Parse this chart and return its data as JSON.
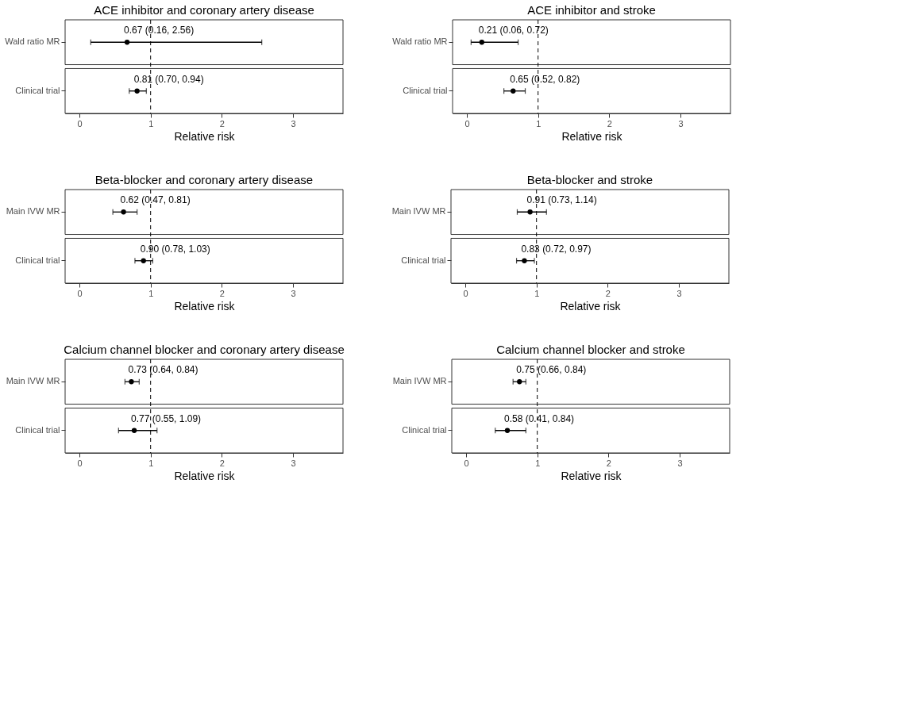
{
  "chart_data": [
    {
      "type": "scatter",
      "title": "ACE inhibitor and coronary artery disease",
      "orientation": "horizontal",
      "categories": [
        "Wald ratio MR",
        "Clinical trial"
      ],
      "values": [
        0.67,
        0.81
      ],
      "errors": [
        [
          0.16,
          2.56
        ],
        [
          0.7,
          0.94
        ]
      ],
      "value_labels": [
        "0.67 (0.16, 2.56)",
        "0.81 (0.70, 0.94)"
      ],
      "color": "#000000",
      "marker": "circle",
      "xlabel": "Relative risk",
      "xlim": [
        -0.2,
        3.7
      ],
      "xticks": [
        0,
        1,
        2,
        3
      ],
      "ref_lines": [
        {
          "axis": "x",
          "value": 1,
          "line_style": "dashed"
        }
      ],
      "grid": false
    },
    {
      "type": "scatter",
      "title": "ACE inhibitor and stroke",
      "orientation": "horizontal",
      "categories": [
        "Wald ratio MR",
        "Clinical trial"
      ],
      "values": [
        0.21,
        0.65
      ],
      "errors": [
        [
          0.06,
          0.72
        ],
        [
          0.52,
          0.82
        ]
      ],
      "value_labels": [
        "0.21 (0.06, 0.72)",
        "0.65 (0.52, 0.82)"
      ],
      "color": "#000000",
      "marker": "circle",
      "xlabel": "Relative risk",
      "xlim": [
        -0.2,
        3.7
      ],
      "xticks": [
        0,
        1,
        2,
        3
      ],
      "ref_lines": [
        {
          "axis": "x",
          "value": 1,
          "line_style": "dashed"
        }
      ],
      "grid": false
    },
    {
      "type": "scatter",
      "title": "Beta-blocker and coronary artery disease",
      "orientation": "horizontal",
      "categories": [
        "Main IVW MR",
        "Clinical trial"
      ],
      "values": [
        0.62,
        0.9
      ],
      "errors": [
        [
          0.47,
          0.81
        ],
        [
          0.78,
          1.03
        ]
      ],
      "value_labels": [
        "0.62 (0.47, 0.81)",
        "0.90 (0.78, 1.03)"
      ],
      "color": "#000000",
      "marker": "circle",
      "xlabel": "Relative risk",
      "xlim": [
        -0.2,
        3.7
      ],
      "xticks": [
        0,
        1,
        2,
        3
      ],
      "ref_lines": [
        {
          "axis": "x",
          "value": 1,
          "line_style": "dashed"
        }
      ],
      "grid": false
    },
    {
      "type": "scatter",
      "title": "Beta-blocker and stroke",
      "orientation": "horizontal",
      "categories": [
        "Main IVW MR",
        "Clinical trial"
      ],
      "values": [
        0.91,
        0.83
      ],
      "errors": [
        [
          0.73,
          1.14
        ],
        [
          0.72,
          0.97
        ]
      ],
      "value_labels": [
        "0.91 (0.73, 1.14)",
        "0.83 (0.72, 0.97)"
      ],
      "color": "#000000",
      "marker": "circle",
      "xlabel": "Relative risk",
      "xlim": [
        -0.2,
        3.7
      ],
      "xticks": [
        0,
        1,
        2,
        3
      ],
      "ref_lines": [
        {
          "axis": "x",
          "value": 1,
          "line_style": "dashed"
        }
      ],
      "grid": false
    },
    {
      "type": "scatter",
      "title": "Calcium channel blocker and coronary artery disease",
      "orientation": "horizontal",
      "categories": [
        "Main IVW MR",
        "Clinical trial"
      ],
      "values": [
        0.73,
        0.77
      ],
      "errors": [
        [
          0.64,
          0.84
        ],
        [
          0.55,
          1.09
        ]
      ],
      "value_labels": [
        "0.73 (0.64, 0.84)",
        "0.77 (0.55, 1.09)"
      ],
      "color": "#000000",
      "marker": "circle",
      "xlabel": "Relative risk",
      "xlim": [
        -0.2,
        3.7
      ],
      "xticks": [
        0,
        1,
        2,
        3
      ],
      "ref_lines": [
        {
          "axis": "x",
          "value": 1,
          "line_style": "dashed"
        }
      ],
      "grid": false
    },
    {
      "type": "scatter",
      "title": "Calcium channel blocker and stroke",
      "orientation": "horizontal",
      "categories": [
        "Main IVW MR",
        "Clinical trial"
      ],
      "values": [
        0.75,
        0.58
      ],
      "errors": [
        [
          0.66,
          0.84
        ],
        [
          0.41,
          0.84
        ]
      ],
      "value_labels": [
        "0.75 (0.66, 0.84)",
        "0.58 (0.41, 0.84)"
      ],
      "color": "#000000",
      "marker": "circle",
      "xlabel": "Relative risk",
      "xlim": [
        -0.2,
        3.7
      ],
      "xticks": [
        0,
        1,
        2,
        3
      ],
      "ref_lines": [
        {
          "axis": "x",
          "value": 1,
          "line_style": "dashed"
        }
      ],
      "grid": false
    }
  ]
}
